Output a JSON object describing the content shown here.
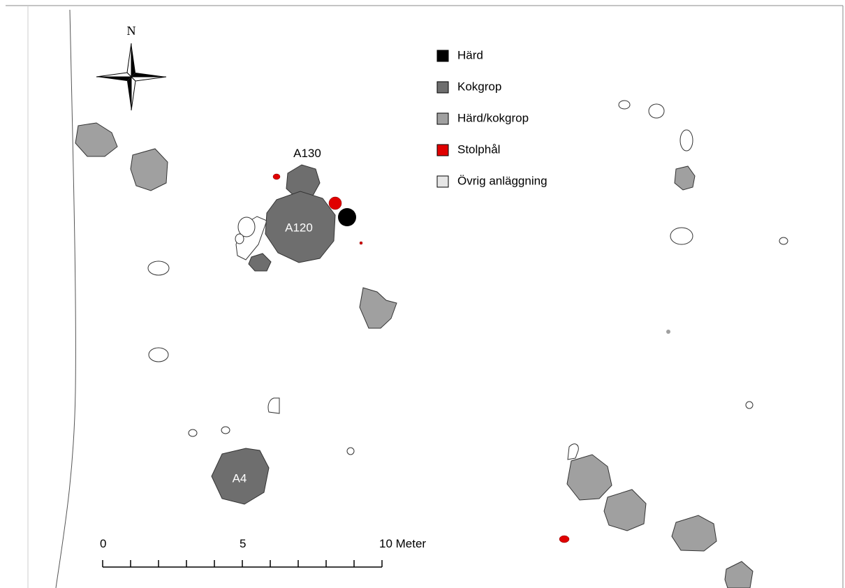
{
  "north": "N",
  "legend": [
    {
      "label": "Härd",
      "color": "#000000"
    },
    {
      "label": "Kokgrop",
      "color": "#6e6e6e"
    },
    {
      "label": "Härd/kokgrop",
      "color": "#a0a0a0"
    },
    {
      "label": "Stolphål",
      "color": "#e00000"
    },
    {
      "label": "Övrig anläggning",
      "color": "#e6e6e6"
    }
  ],
  "features": {
    "a130": "A130",
    "a120": "A120",
    "a4": "A4"
  },
  "scale": {
    "labels": [
      "0",
      "5",
      "10 Meter"
    ]
  }
}
